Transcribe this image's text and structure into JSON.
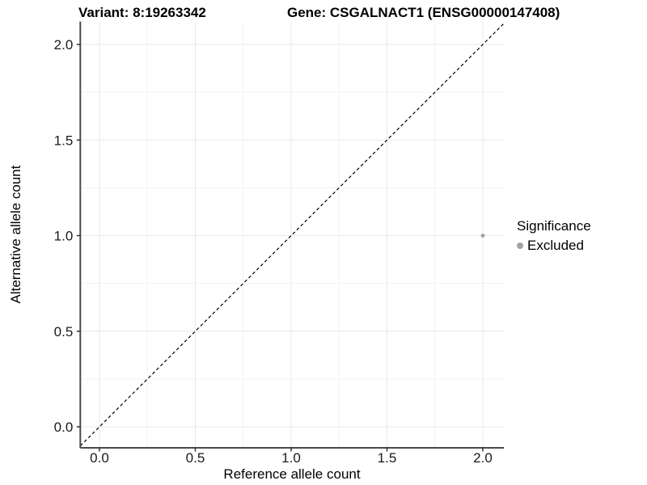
{
  "chart_data": {
    "type": "scatter",
    "title_left": "Variant: 8:19263342",
    "title_right": "Gene: CSGALNACT1 (ENSG00000147408)",
    "xlabel": "Reference allele count",
    "ylabel": "Alternative allele count",
    "xlim": [
      -0.1,
      2.11
    ],
    "ylim": [
      -0.11,
      2.12
    ],
    "xticks": {
      "values": [
        0,
        0.5,
        1,
        1.5,
        2
      ],
      "labels": [
        "0.0",
        "0.5",
        "1.0",
        "1.5",
        "2.0"
      ]
    },
    "yticks": {
      "values": [
        0,
        0.5,
        1,
        1.5,
        2
      ],
      "labels": [
        "0.0",
        "0.5",
        "1.0",
        "1.5",
        "2.0"
      ]
    },
    "minor_ticks": [
      0.25,
      0.75,
      1.25,
      1.75
    ],
    "grid": "major and minor gridlines, light gray on white panel",
    "reference_line": {
      "type": "identity y=x",
      "style": "dashed",
      "color": "#000000"
    },
    "series": [
      {
        "name": "Excluded",
        "color": "#a3a3a3",
        "points": [
          {
            "x": 2.0,
            "y": 1.0
          }
        ]
      }
    ],
    "legend": {
      "title": "Significance",
      "position": "right",
      "entries": [
        {
          "label": "Excluded",
          "color": "#a3a3a3",
          "marker": "circle-icon"
        }
      ]
    },
    "colors": {
      "axis_line": "#4a4a4a",
      "tick_mark": "#333333",
      "grid_major": "#e8e8e8",
      "grid_minor": "#f3f3f3",
      "text": "#000000"
    }
  }
}
